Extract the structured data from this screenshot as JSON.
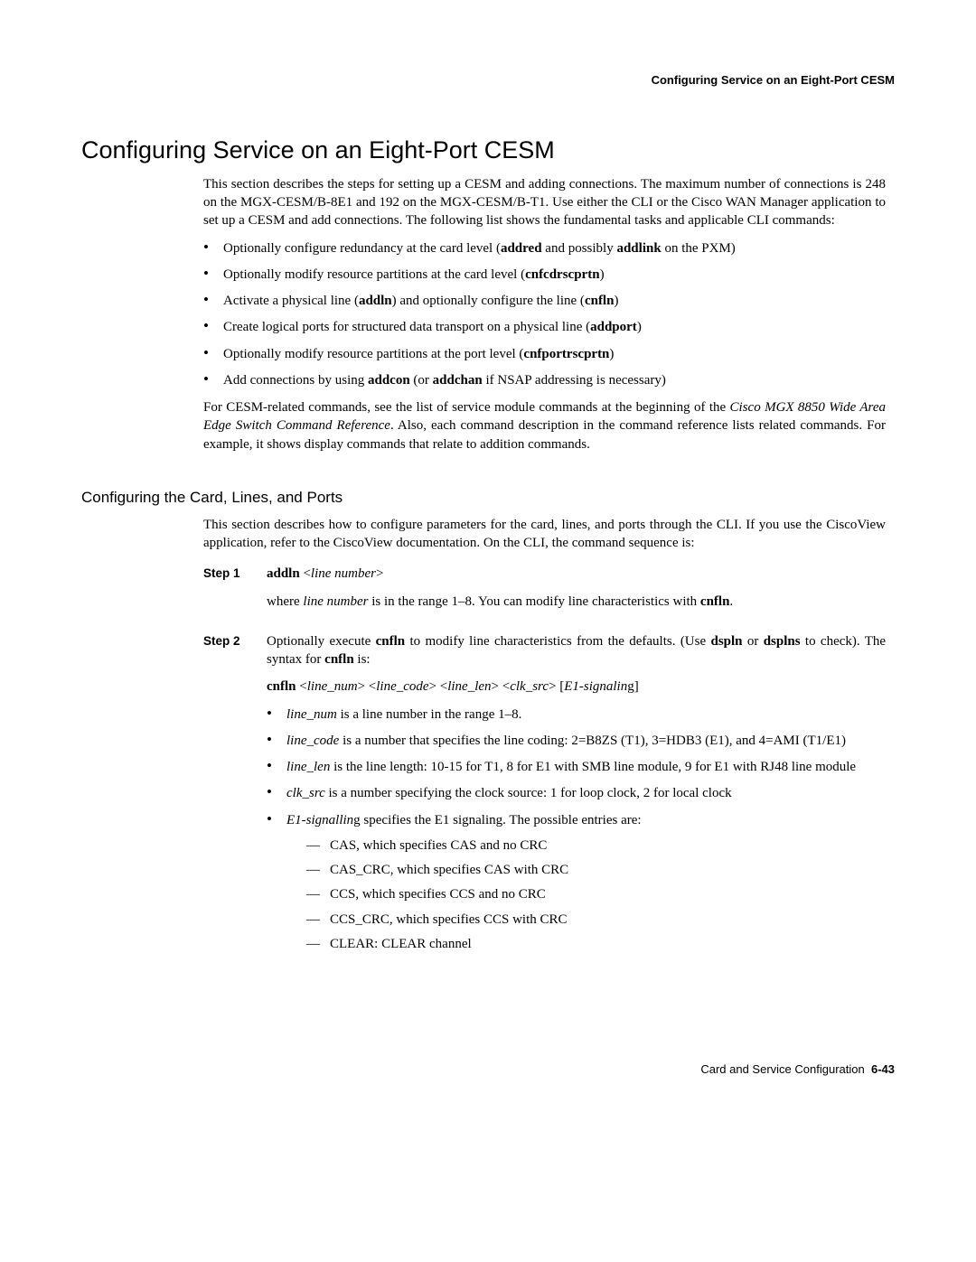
{
  "header": {
    "right": "Configuring Service on an Eight-Port CESM"
  },
  "h1": "Configuring Service on an Eight-Port CESM",
  "intro": "This section describes the steps for setting up a CESM and adding connections. The maximum number of connections is 248 on the MGX-CESM/B-8E1 and 192 on the MGX-CESM/B-T1. Use either the CLI or the Cisco WAN Manager application to set up a CESM and add connections. The following list shows the fundamental tasks and applicable CLI commands:",
  "bullets": {
    "b0_a": "Optionally configure redundancy at the card level (",
    "b0_b": "addred",
    "b0_c": " and possibly ",
    "b0_d": "addlink",
    "b0_e": " on the PXM)",
    "b1_a": "Optionally modify resource partitions at the card level (",
    "b1_b": "cnfcdrscprtn",
    "b1_c": ")",
    "b2_a": "Activate a physical line (",
    "b2_b": "addln",
    "b2_c": ") and optionally configure the line (",
    "b2_d": "cnfln",
    "b2_e": ")",
    "b3_a": "Create logical ports for structured data transport on a physical line (",
    "b3_b": "addport",
    "b3_c": ")",
    "b4_a": "Optionally modify resource partitions at the port level (",
    "b4_b": "cnfportrscprtn",
    "b4_c": ")",
    "b5_a": "Add connections by using ",
    "b5_b": "addcon",
    "b5_c": " (or ",
    "b5_d": "addchan",
    "b5_e": " if NSAP addressing is necessary)"
  },
  "after_bullets_a": "For CESM-related commands, see the list of service module commands at the beginning of the ",
  "after_bullets_b": "Cisco MGX 8850 Wide Area Edge Switch Command Reference",
  "after_bullets_c": ". Also, each command description in the command reference lists related commands. For example, it shows display commands that relate to addition commands.",
  "h2": "Configuring the Card, Lines, and Ports",
  "sec2_intro": "This section describes how to configure parameters for the card, lines, and ports through the CLI. If you use the CiscoView application, refer to the CiscoView documentation. On the CLI, the command sequence is:",
  "step1_label": "Step 1",
  "step1_cmd_a": "addln",
  "step1_cmd_b": " <",
  "step1_cmd_c": "line number",
  "step1_cmd_d": ">",
  "step1_desc_a": "where ",
  "step1_desc_b": "line number",
  "step1_desc_c": " is in the range 1–8. You can modify line characteristics with ",
  "step1_desc_d": "cnfln",
  "step1_desc_e": ".",
  "step2_label": "Step 2",
  "step2_p1_a": "Optionally execute ",
  "step2_p1_b": "cnfln",
  "step2_p1_c": " to modify line characteristics from the defaults. (Use ",
  "step2_p1_d": "dspln",
  "step2_p1_e": " or ",
  "step2_p1_f": "dsplns",
  "step2_p1_g": " to check). The syntax for ",
  "step2_p1_h": "cnfln",
  "step2_p1_i": " is:",
  "step2_syntax_a": "cnfln",
  "step2_syntax_b": " <",
  "step2_syntax_c": "line_num",
  "step2_syntax_d": "> <",
  "step2_syntax_e": "line_code",
  "step2_syntax_f": "> <",
  "step2_syntax_g": "line_len",
  "step2_syntax_h": "> <",
  "step2_syntax_i": "clk_src",
  "step2_syntax_j": "> [",
  "step2_syntax_k": "E1-signalin",
  "step2_syntax_l": "g]",
  "s2b0_a": "line_num",
  "s2b0_b": " is a line number in the range 1–8.",
  "s2b1_a": "line_code",
  "s2b1_b": " is a number that specifies the line coding: 2=B8ZS (T1), 3=HDB3 (E1), and 4=AMI (T1/E1)",
  "s2b2_a": "line_len",
  "s2b2_b": " is the line length: 10-15 for T1, 8 for E1 with SMB line module, 9 for E1 with RJ48 line module",
  "s2b3_a": "clk_src",
  "s2b3_b": " is a number specifying the clock source: 1 for loop clock, 2 for local clock",
  "s2b4_a": "E1-signallin",
  "s2b4_b": "g specifies the E1 signaling. The possible entries are:",
  "sub0": "CAS, which specifies CAS and no CRC",
  "sub1": "CAS_CRC, which specifies CAS with CRC",
  "sub2": "CCS, which specifies CCS and no CRC",
  "sub3": "CCS_CRC, which specifies CCS with CRC",
  "sub4": "CLEAR: CLEAR channel",
  "footer_a": "Card and Service Configuration",
  "footer_b": "6-43"
}
